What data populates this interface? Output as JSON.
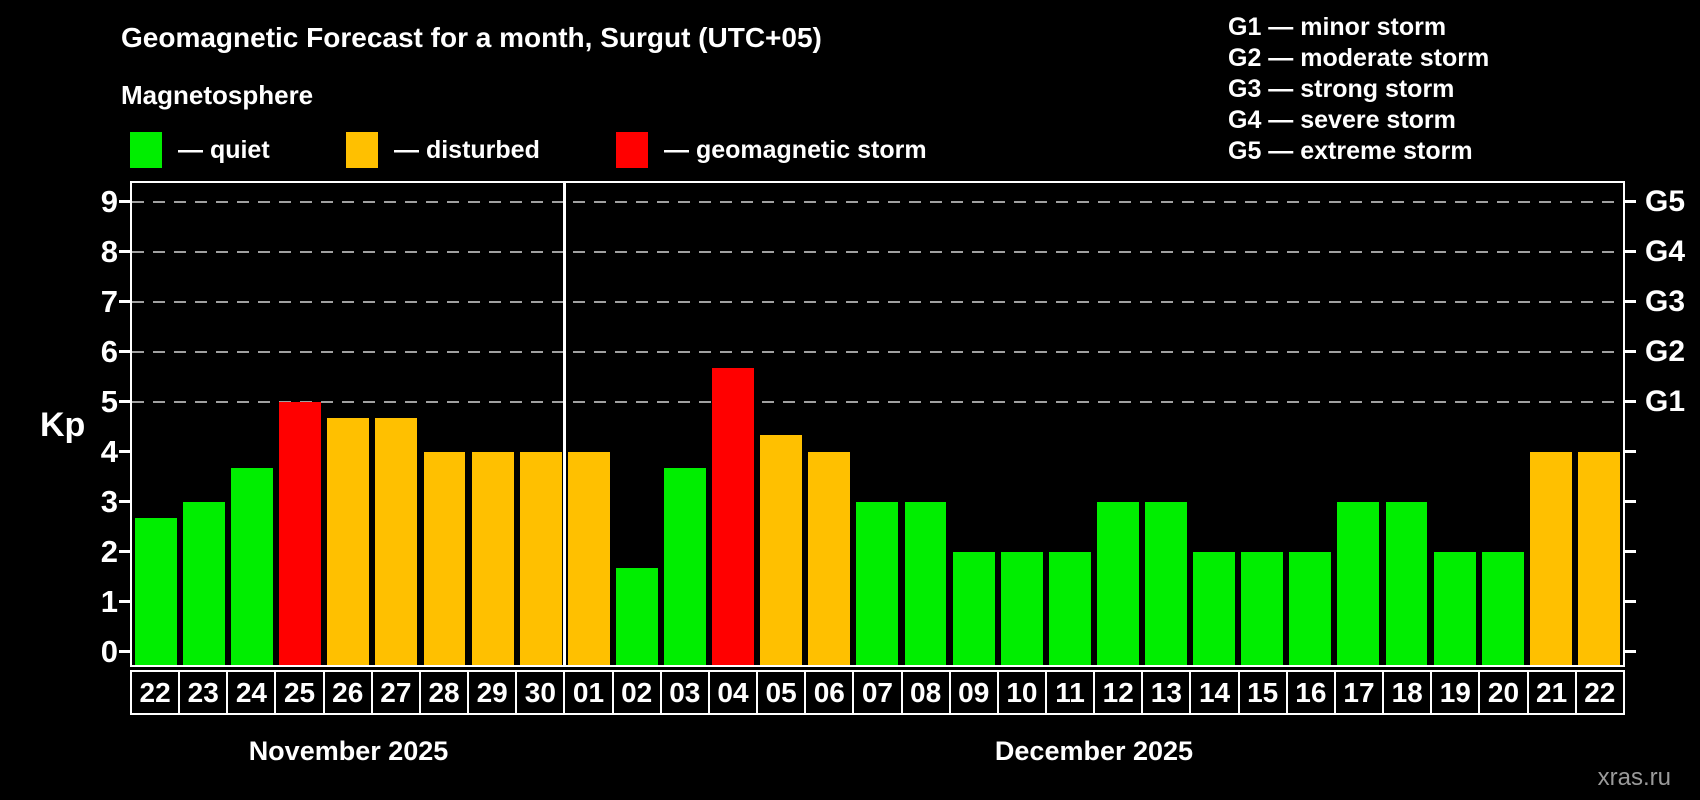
{
  "title": "Geomagnetic Forecast for a month, Surgut (UTC+05)",
  "subtitle": "Magnetosphere",
  "legend": {
    "items": [
      {
        "key": "quiet",
        "label": "— quiet",
        "color": "#00ee00"
      },
      {
        "key": "disturbed",
        "label": "— disturbed",
        "color": "#ffc000"
      },
      {
        "key": "storm",
        "label": "— geomagnetic storm",
        "color": "#ff0000"
      }
    ]
  },
  "storm_scale_legend": [
    "G1 — minor storm",
    "G2 — moderate storm",
    "G3 — strong storm",
    "G4 — severe storm",
    "G5 — extreme storm"
  ],
  "y_axis": {
    "label": "Kp",
    "ticks": [
      0,
      1,
      2,
      3,
      4,
      5,
      6,
      7,
      8,
      9
    ]
  },
  "months": [
    {
      "label": "November 2025"
    },
    {
      "label": "December 2025"
    }
  ],
  "watermark": "xras.ru",
  "chart_data": {
    "type": "bar",
    "title": "Geomagnetic Forecast for a month, Surgut (UTC+05)",
    "subtitle": "Magnetosphere",
    "ylabel": "Kp",
    "ylim": [
      0,
      9
    ],
    "grid": "dashed horizontal at Kp 5-9 only",
    "gridlines_at": [
      5,
      6,
      7,
      8,
      9
    ],
    "right_axis_levels": [
      {
        "label": "G1",
        "kp": 5
      },
      {
        "label": "G2",
        "kp": 6
      },
      {
        "label": "G3",
        "kp": 7
      },
      {
        "label": "G4",
        "kp": 8
      },
      {
        "label": "G5",
        "kp": 9
      }
    ],
    "legend_position": "top-left (status colors), top-right (G-scale)",
    "bars": [
      {
        "day": "22",
        "month": "November 2025",
        "kp": 2.67,
        "status": "quiet"
      },
      {
        "day": "23",
        "month": "November 2025",
        "kp": 3.0,
        "status": "quiet"
      },
      {
        "day": "24",
        "month": "November 2025",
        "kp": 3.67,
        "status": "quiet"
      },
      {
        "day": "25",
        "month": "November 2025",
        "kp": 5.0,
        "status": "storm"
      },
      {
        "day": "26",
        "month": "November 2025",
        "kp": 4.67,
        "status": "disturbed"
      },
      {
        "day": "27",
        "month": "November 2025",
        "kp": 4.67,
        "status": "disturbed"
      },
      {
        "day": "28",
        "month": "November 2025",
        "kp": 4.0,
        "status": "disturbed"
      },
      {
        "day": "29",
        "month": "November 2025",
        "kp": 4.0,
        "status": "disturbed"
      },
      {
        "day": "30",
        "month": "November 2025",
        "kp": 4.0,
        "status": "disturbed"
      },
      {
        "day": "01",
        "month": "December 2025",
        "kp": 4.0,
        "status": "disturbed"
      },
      {
        "day": "02",
        "month": "December 2025",
        "kp": 1.67,
        "status": "quiet"
      },
      {
        "day": "03",
        "month": "December 2025",
        "kp": 3.67,
        "status": "quiet"
      },
      {
        "day": "04",
        "month": "December 2025",
        "kp": 5.67,
        "status": "storm"
      },
      {
        "day": "05",
        "month": "December 2025",
        "kp": 4.33,
        "status": "disturbed"
      },
      {
        "day": "06",
        "month": "December 2025",
        "kp": 4.0,
        "status": "disturbed"
      },
      {
        "day": "07",
        "month": "December 2025",
        "kp": 3.0,
        "status": "quiet"
      },
      {
        "day": "08",
        "month": "December 2025",
        "kp": 3.0,
        "status": "quiet"
      },
      {
        "day": "09",
        "month": "December 2025",
        "kp": 2.0,
        "status": "quiet"
      },
      {
        "day": "10",
        "month": "December 2025",
        "kp": 2.0,
        "status": "quiet"
      },
      {
        "day": "11",
        "month": "December 2025",
        "kp": 2.0,
        "status": "quiet"
      },
      {
        "day": "12",
        "month": "December 2025",
        "kp": 3.0,
        "status": "quiet"
      },
      {
        "day": "13",
        "month": "December 2025",
        "kp": 3.0,
        "status": "quiet"
      },
      {
        "day": "14",
        "month": "December 2025",
        "kp": 2.0,
        "status": "quiet"
      },
      {
        "day": "15",
        "month": "December 2025",
        "kp": 2.0,
        "status": "quiet"
      },
      {
        "day": "16",
        "month": "December 2025",
        "kp": 2.0,
        "status": "quiet"
      },
      {
        "day": "17",
        "month": "December 2025",
        "kp": 3.0,
        "status": "quiet"
      },
      {
        "day": "18",
        "month": "December 2025",
        "kp": 3.0,
        "status": "quiet"
      },
      {
        "day": "19",
        "month": "December 2025",
        "kp": 2.0,
        "status": "quiet"
      },
      {
        "day": "20",
        "month": "December 2025",
        "kp": 2.0,
        "status": "quiet"
      },
      {
        "day": "21",
        "month": "December 2025",
        "kp": 4.0,
        "status": "disturbed"
      },
      {
        "day": "22",
        "month": "December 2025",
        "kp": 4.0,
        "status": "disturbed"
      }
    ]
  }
}
